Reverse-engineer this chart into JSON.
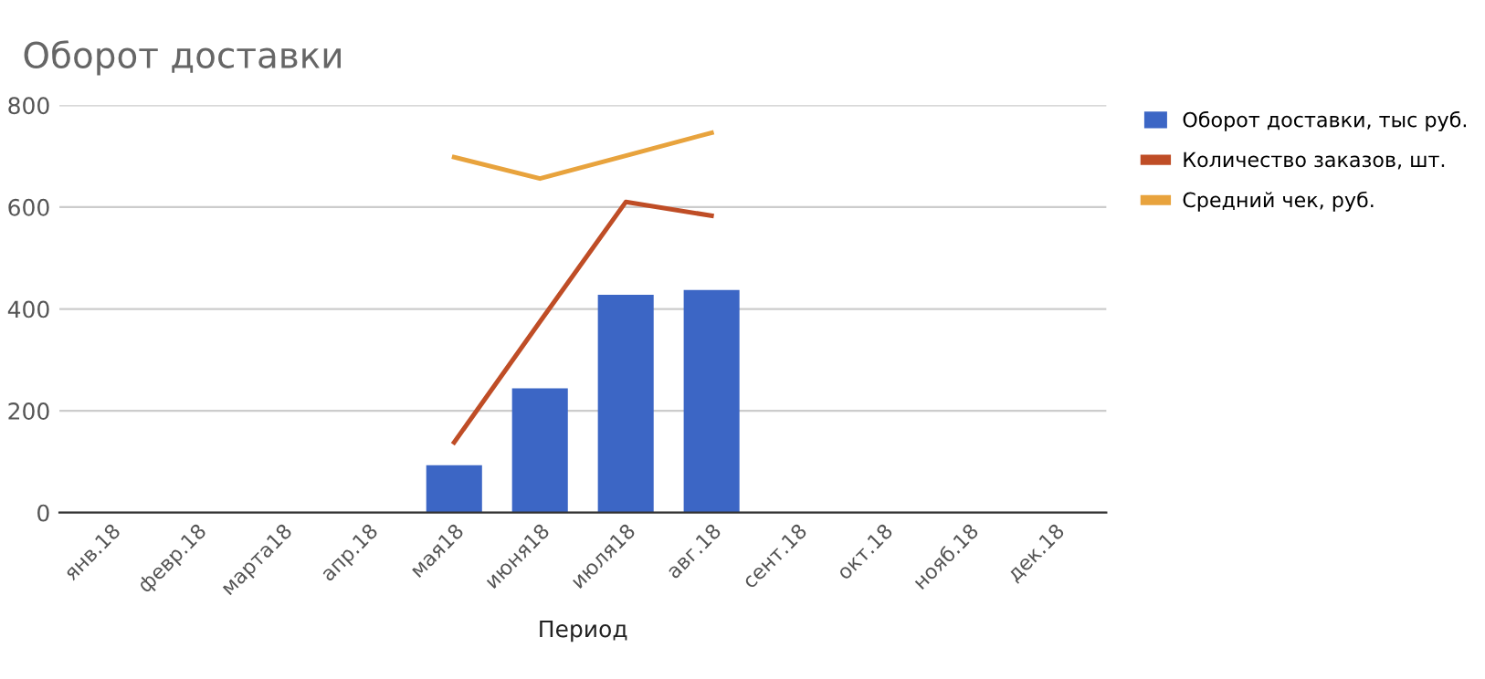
{
  "chart_data": {
    "type": "bar",
    "title": "Оборот доставки",
    "xlabel": "Период",
    "categories": [
      "янв.18",
      "февр.18",
      "марта18",
      "апр.18",
      "мая18",
      "июня18",
      "июля18",
      "авг.18",
      "сент.18",
      "окт.18",
      "нояб.18",
      "дек.18"
    ],
    "series": [
      {
        "name": "Оборот доставки, тыс руб.",
        "color": "#3c66c5",
        "values": [
          null,
          null,
          null,
          null,
          93,
          244,
          428,
          437,
          null,
          null,
          null,
          null
        ]
      },
      {
        "name": "Количество заказов, шт.",
        "color": "#bf4d26",
        "type": "line",
        "values": [
          null,
          null,
          null,
          null,
          138,
          375,
          610,
          583,
          null,
          null,
          null,
          null
        ]
      },
      {
        "name": "Средний чек, руб.",
        "color": "#e8a33d",
        "type": "line",
        "values": [
          null,
          null,
          null,
          null,
          698,
          656,
          701,
          746,
          null,
          null,
          null,
          null
        ]
      }
    ],
    "ylim": [
      0,
      800
    ],
    "yticks": [
      0,
      200,
      400,
      600,
      800
    ],
    "grid": "y",
    "legend": "right",
    "marker": "none",
    "line_style": "solid"
  }
}
